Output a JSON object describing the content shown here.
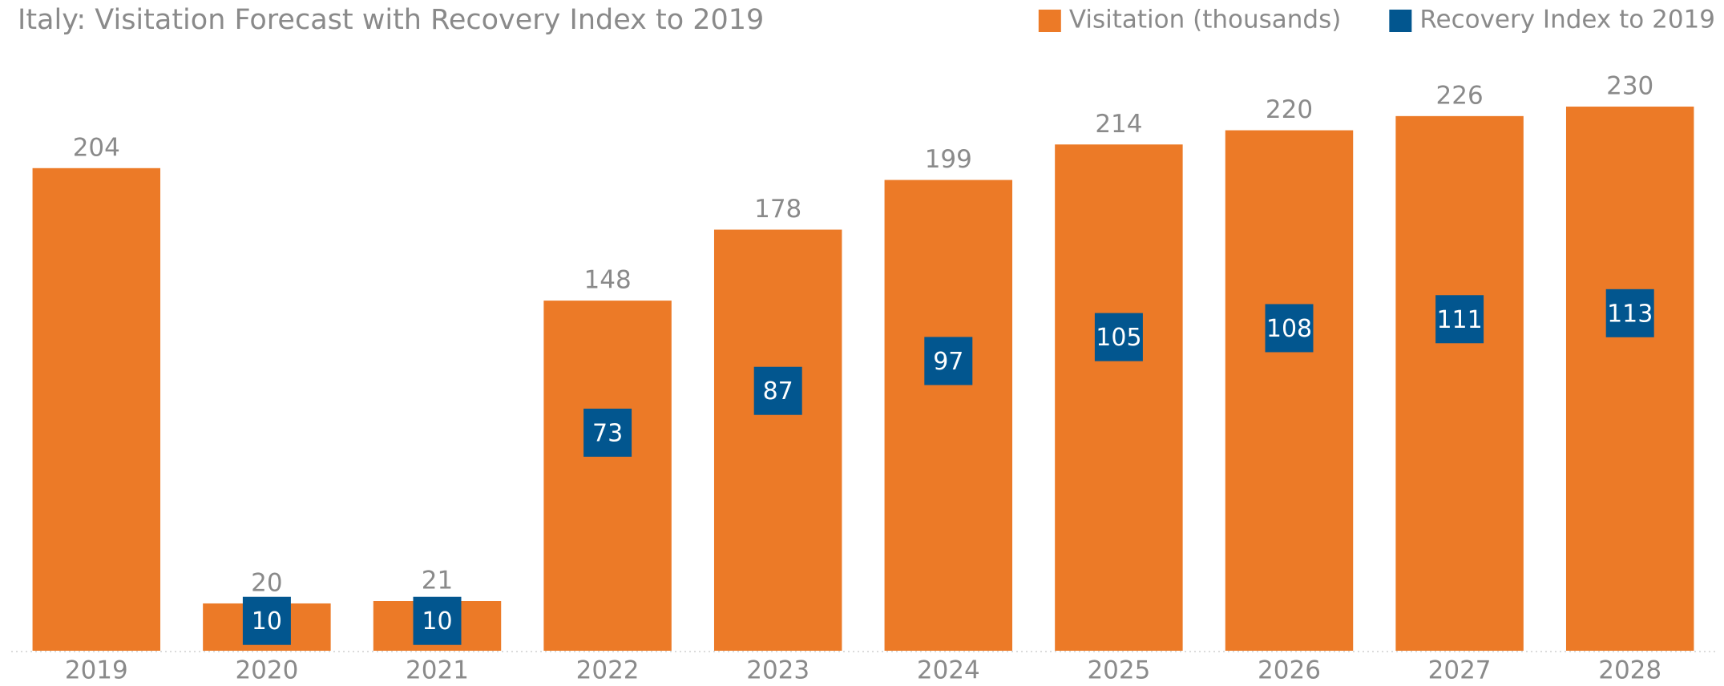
{
  "chart_data": {
    "type": "bar",
    "title": "Italy: Visitation Forecast with Recovery Index to 2019",
    "categories": [
      "2019",
      "2020",
      "2021",
      "2022",
      "2023",
      "2024",
      "2025",
      "2026",
      "2027",
      "2028"
    ],
    "series": [
      {
        "name": "Visitation (thousands)",
        "color": "#ec7a27",
        "values": [
          204,
          20,
          21,
          148,
          178,
          199,
          214,
          220,
          226,
          230
        ]
      },
      {
        "name": "Recovery Index to 2019",
        "color": "#02568f",
        "axis": "y2",
        "marker": "square",
        "values": [
          null,
          10,
          10,
          73,
          87,
          97,
          105,
          108,
          111,
          113
        ]
      }
    ],
    "ylim": [
      0,
      250
    ],
    "y2lim": [
      0,
      198
    ],
    "legend": "top-right"
  }
}
